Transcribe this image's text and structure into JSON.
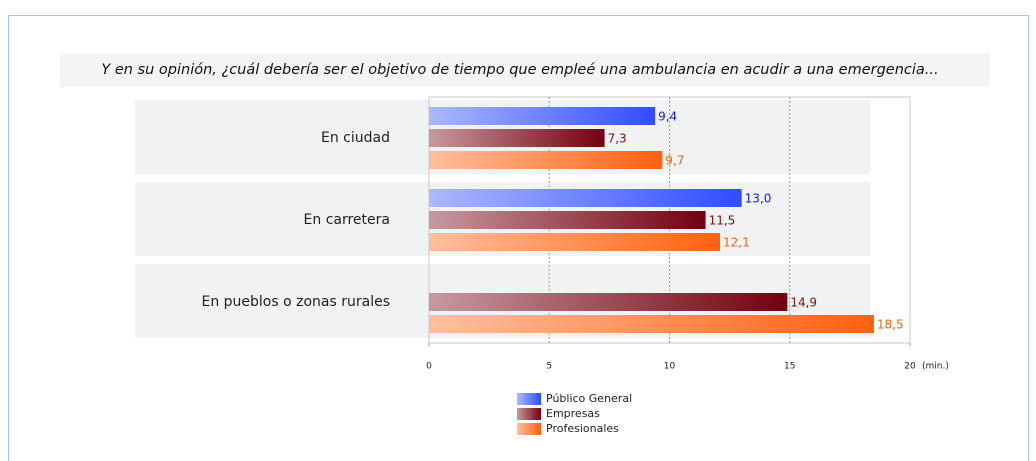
{
  "chart_data": {
    "type": "bar",
    "orientation": "horizontal",
    "title": "Y en su opinión, ¿cuál debería ser el objetivo de tiempo que empleé una ambulancia en acudir a una emergencia...",
    "categories": [
      "En ciudad",
      "En carretera",
      "En pueblos o zonas rurales"
    ],
    "series": [
      {
        "name": "Público General",
        "color": "#2f4dff",
        "label_color": "#1a1ad0",
        "values": [
          9.4,
          13.0,
          null
        ],
        "value_labels": [
          "9,4",
          "13,0",
          null
        ]
      },
      {
        "name": "Empresas",
        "color": "#740010",
        "label_color": "#7a1010",
        "values": [
          7.3,
          11.5,
          14.9
        ],
        "value_labels": [
          "7,3",
          "11,5",
          "14,9"
        ]
      },
      {
        "name": "Profesionales",
        "color": "#ff6010",
        "label_color": "#e8680f",
        "values": [
          9.7,
          12.1,
          18.5
        ],
        "value_labels": [
          "9,7",
          "12,1",
          "18,5"
        ]
      }
    ],
    "xlim": [
      0,
      20
    ],
    "xticks": [
      0,
      5,
      10,
      15,
      20
    ],
    "x_axis_label": "(min.)",
    "grid": true
  }
}
